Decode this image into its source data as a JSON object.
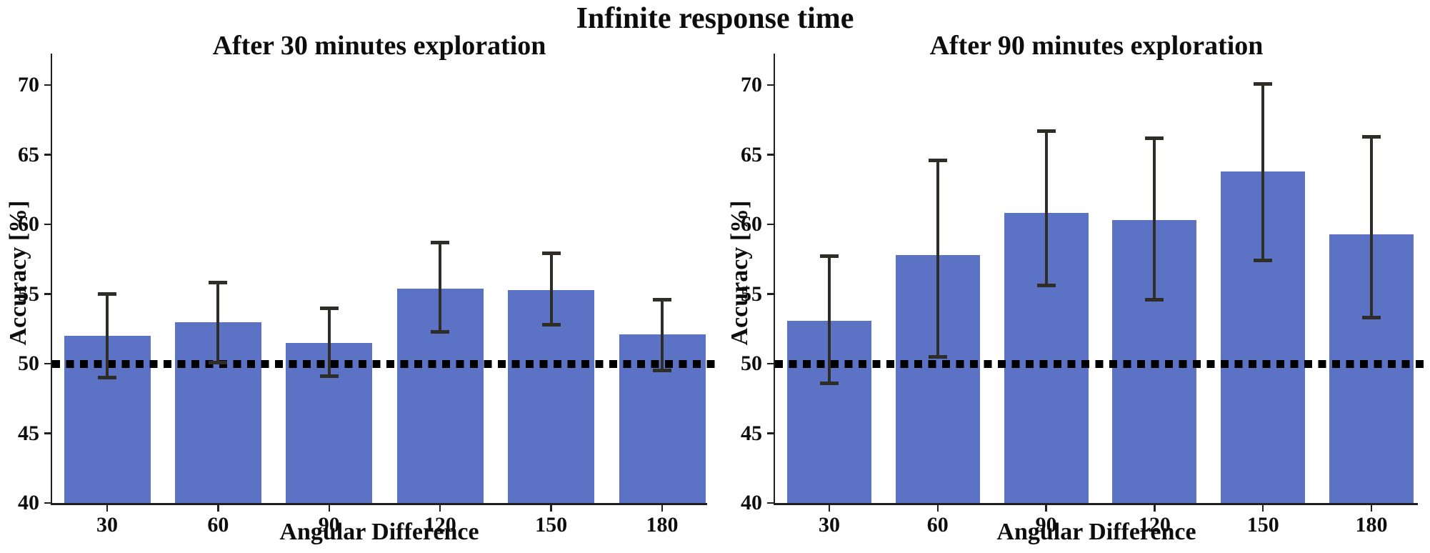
{
  "main_title": "Infinite response time",
  "colors": {
    "bar_fill": "#5c73c5",
    "error_bar": "#2f2d28",
    "chance_line": "#000000",
    "axis": "#1f1f1f",
    "text": "#0d0d0d",
    "background": "#ffffff"
  },
  "chart_data": [
    {
      "type": "bar",
      "title": "After 30 minutes exploration",
      "xlabel": "Angular Difference",
      "ylabel": "Accuracy [%]",
      "categories": [
        "30",
        "60",
        "90",
        "120",
        "150",
        "180"
      ],
      "values": [
        52.0,
        53.0,
        51.5,
        55.4,
        55.3,
        52.1
      ],
      "error_low": [
        49.0,
        50.1,
        49.1,
        52.3,
        52.8,
        49.5
      ],
      "error_high": [
        55.0,
        55.8,
        54.0,
        58.7,
        57.9,
        54.6
      ],
      "reference_line": 50,
      "yticks": [
        40,
        45,
        50,
        55,
        60,
        65,
        70
      ],
      "ylim": [
        40,
        72.3
      ],
      "grid": false,
      "legend": null
    },
    {
      "type": "bar",
      "title": "After 90 minutes exploration",
      "xlabel": "Angular Difference",
      "ylabel": "Accuracy [%]",
      "categories": [
        "30",
        "60",
        "90",
        "120",
        "150",
        "180"
      ],
      "values": [
        53.1,
        57.8,
        60.8,
        60.3,
        63.8,
        59.3
      ],
      "error_low": [
        48.6,
        50.5,
        55.6,
        54.6,
        57.4,
        53.3
      ],
      "error_high": [
        57.7,
        64.6,
        66.7,
        66.2,
        70.1,
        66.3
      ],
      "reference_line": 50,
      "yticks": [
        40,
        45,
        50,
        55,
        60,
        65,
        70
      ],
      "ylim": [
        40,
        72.3
      ],
      "grid": false,
      "legend": null
    }
  ]
}
